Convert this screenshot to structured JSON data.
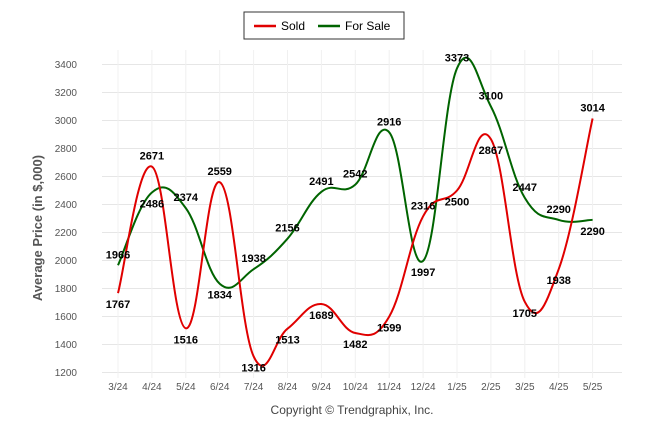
{
  "chart_data": {
    "type": "line",
    "ylabel": "Average Price (in $,000)",
    "credit": "Copyright © Trendgraphix, Inc.",
    "categories": [
      "3/24",
      "4/24",
      "5/24",
      "6/24",
      "7/24",
      "8/24",
      "9/24",
      "10/24",
      "11/24",
      "12/24",
      "1/25",
      "2/25",
      "3/25",
      "4/25",
      "5/25"
    ],
    "ylim": [
      1200,
      3500
    ],
    "yticks": [
      1200,
      1400,
      1600,
      1800,
      2000,
      2200,
      2400,
      2600,
      2800,
      3000,
      3200,
      3400
    ],
    "grid": true,
    "smooth": true,
    "legend_position": "top-center",
    "series": [
      {
        "name": "Sold",
        "color": "#e00000",
        "values": [
          1767,
          2671,
          1516,
          2559,
          1316,
          1513,
          1689,
          1482,
          1599,
          2316,
          2500,
          2867,
          1705,
          1938,
          3014
        ]
      },
      {
        "name": "For Sale",
        "color": "#006400",
        "values": [
          1966,
          2486,
          2374,
          1834,
          1938,
          2156,
          2491,
          2542,
          2916,
          1997,
          3373,
          3100,
          2447,
          2290,
          2290
        ]
      }
    ]
  }
}
